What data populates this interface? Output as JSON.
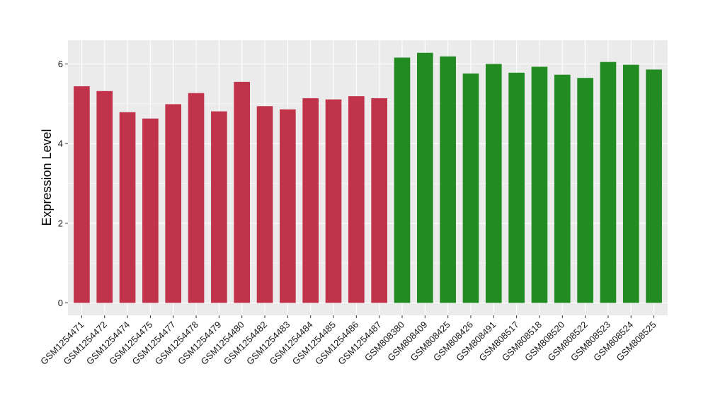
{
  "chart_data": {
    "type": "bar",
    "title": "",
    "xlabel": "",
    "ylabel": "Expression Level",
    "ylim": [
      0,
      6.5
    ],
    "yticks": [
      0,
      2,
      4,
      6
    ],
    "grid": true,
    "categories": [
      "GSM1254471",
      "GSM1254472",
      "GSM1254474",
      "GSM1254475",
      "GSM1254477",
      "GSM1254478",
      "GSM1254479",
      "GSM1254480",
      "GSM1254482",
      "GSM1254483",
      "GSM1254484",
      "GSM1254485",
      "GSM1254486",
      "GSM1254487",
      "GSM808380",
      "GSM808409",
      "GSM808425",
      "GSM808426",
      "GSM808491",
      "GSM808517",
      "GSM808518",
      "GSM808520",
      "GSM808522",
      "GSM808523",
      "GSM808524",
      "GSM808525"
    ],
    "values": [
      5.44,
      5.32,
      4.79,
      4.63,
      4.99,
      5.27,
      4.81,
      5.55,
      4.94,
      4.86,
      5.14,
      5.11,
      5.19,
      5.14,
      6.16,
      6.28,
      6.19,
      5.76,
      6.0,
      5.78,
      5.93,
      5.73,
      5.65,
      6.05,
      5.98,
      5.86
    ],
    "bar_colors": [
      "#c0334a",
      "#c0334a",
      "#c0334a",
      "#c0334a",
      "#c0334a",
      "#c0334a",
      "#c0334a",
      "#c0334a",
      "#c0334a",
      "#c0334a",
      "#c0334a",
      "#c0334a",
      "#c0334a",
      "#c0334a",
      "#228b22",
      "#228b22",
      "#228b22",
      "#228b22",
      "#228b22",
      "#228b22",
      "#228b22",
      "#228b22",
      "#228b22",
      "#228b22",
      "#228b22",
      "#228b22"
    ],
    "panel_background": "#ebebeb",
    "grid_color": "#ffffff"
  }
}
